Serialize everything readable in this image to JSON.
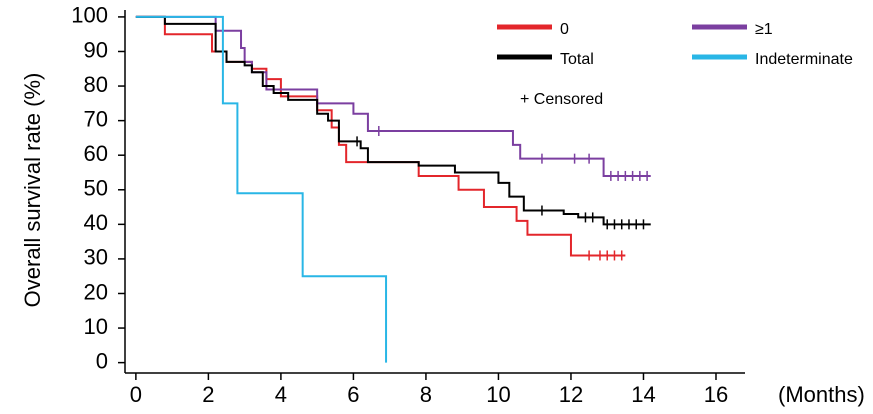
{
  "chart_data": {
    "type": "line",
    "step": "post",
    "y_label": "Overall survival rate (%)",
    "x_label": "(Months)",
    "censored_label": "+ Censored",
    "xlim": [
      -0.3,
      16.8
    ],
    "ylim": [
      -3,
      102
    ],
    "xticks": [
      0,
      2,
      4,
      6,
      8,
      10,
      12,
      14,
      16
    ],
    "yticks": [
      0,
      10,
      20,
      30,
      40,
      50,
      60,
      70,
      80,
      90,
      100
    ],
    "series": [
      {
        "name": "0",
        "color": "#e3262b",
        "x": [
          0,
          0.8,
          2.1,
          2.5,
          3.2,
          3.6,
          4.0,
          5.0,
          5.4,
          5.6,
          5.8,
          7.8,
          8.9,
          9.6,
          10.5,
          10.8,
          12.0,
          13.5
        ],
        "values": [
          100,
          95,
          90,
          87,
          85,
          82,
          77,
          73,
          68,
          63,
          58,
          54,
          50,
          45,
          41,
          37,
          31,
          31
        ],
        "censored": [
          12.5,
          12.8,
          13.0,
          13.2,
          13.4
        ]
      },
      {
        "name": "≥1",
        "color": "#7b3fa0",
        "x": [
          0,
          2.2,
          2.9,
          3.0,
          3.2,
          3.6,
          5.0,
          6.0,
          6.4,
          10.4,
          10.6,
          12.9,
          14.2
        ],
        "values": [
          100,
          96,
          91,
          87,
          84,
          79,
          75,
          72,
          67,
          63,
          59,
          54,
          54
        ],
        "censored": [
          6.7,
          11.2,
          12.1,
          12.5,
          13.1,
          13.3,
          13.5,
          13.7,
          13.9,
          14.1
        ]
      },
      {
        "name": "Total",
        "color": "#000000",
        "x": [
          0,
          0.8,
          2.2,
          2.5,
          3.0,
          3.2,
          3.5,
          3.8,
          4.2,
          5.0,
          5.3,
          5.6,
          6.2,
          6.4,
          7.8,
          8.8,
          10.0,
          10.3,
          10.7,
          11.8,
          12.2,
          12.9,
          14.2
        ],
        "values": [
          100,
          98,
          90,
          87,
          86,
          84,
          80,
          78,
          76,
          72,
          70,
          64,
          62,
          58,
          57,
          55,
          52,
          48,
          44,
          43,
          42,
          40,
          40
        ],
        "censored": [
          6.1,
          11.2,
          12.4,
          12.6,
          13.0,
          13.2,
          13.4,
          13.6,
          13.8,
          14.0
        ]
      },
      {
        "name": "Indeterminate",
        "color": "#29b6e6",
        "x": [
          0,
          2.4,
          2.8,
          4.6,
          6.9
        ],
        "values": [
          100,
          75,
          49,
          25,
          0
        ],
        "censored": []
      }
    ]
  }
}
